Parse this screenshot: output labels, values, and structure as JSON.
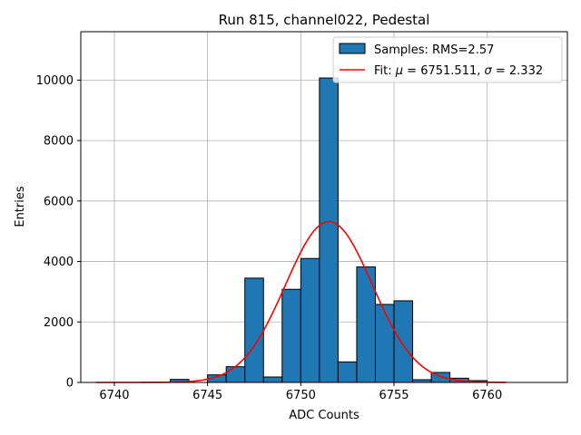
{
  "chart_data": {
    "type": "bar",
    "title": "Run 815, channel022, Pedestal",
    "xlabel": "ADC Counts",
    "ylabel": "Entries",
    "xlim": [
      6738.2,
      6764.3
    ],
    "ylim": [
      0,
      11600
    ],
    "xticks": [
      6740,
      6745,
      6750,
      6755,
      6760
    ],
    "yticks": [
      0,
      2000,
      4000,
      6000,
      8000,
      10000
    ],
    "grid": true,
    "legend_position": "top-right",
    "histogram": {
      "name": "Samples: RMS=2.57",
      "color": "#1f77b4",
      "bin_width": 1,
      "bins": [
        {
          "left": 6743,
          "count": 100
        },
        {
          "left": 6744,
          "count": 0
        },
        {
          "left": 6745,
          "count": 250
        },
        {
          "left": 6746,
          "count": 520
        },
        {
          "left": 6747,
          "count": 3450
        },
        {
          "left": 6748,
          "count": 180
        },
        {
          "left": 6749,
          "count": 3080
        },
        {
          "left": 6750,
          "count": 4100
        },
        {
          "left": 6751,
          "count": 10070
        },
        {
          "left": 6752,
          "count": 680
        },
        {
          "left": 6753,
          "count": 3820
        },
        {
          "left": 6754,
          "count": 2580
        },
        {
          "left": 6755,
          "count": 2700
        },
        {
          "left": 6756,
          "count": 90
        },
        {
          "left": 6757,
          "count": 330
        },
        {
          "left": 6758,
          "count": 140
        },
        {
          "left": 6759,
          "count": 60
        }
      ]
    },
    "fit": {
      "name_prefix": "Fit: ",
      "name_mu": "μ",
      "name_mid": " = 6751.511, ",
      "name_sigma": "σ",
      "name_suffix": " = 2.332",
      "color": "#ff0000",
      "mu": 6751.511,
      "sigma": 2.332,
      "amplitude": 5320,
      "x_range": [
        6739,
        6761
      ]
    }
  }
}
